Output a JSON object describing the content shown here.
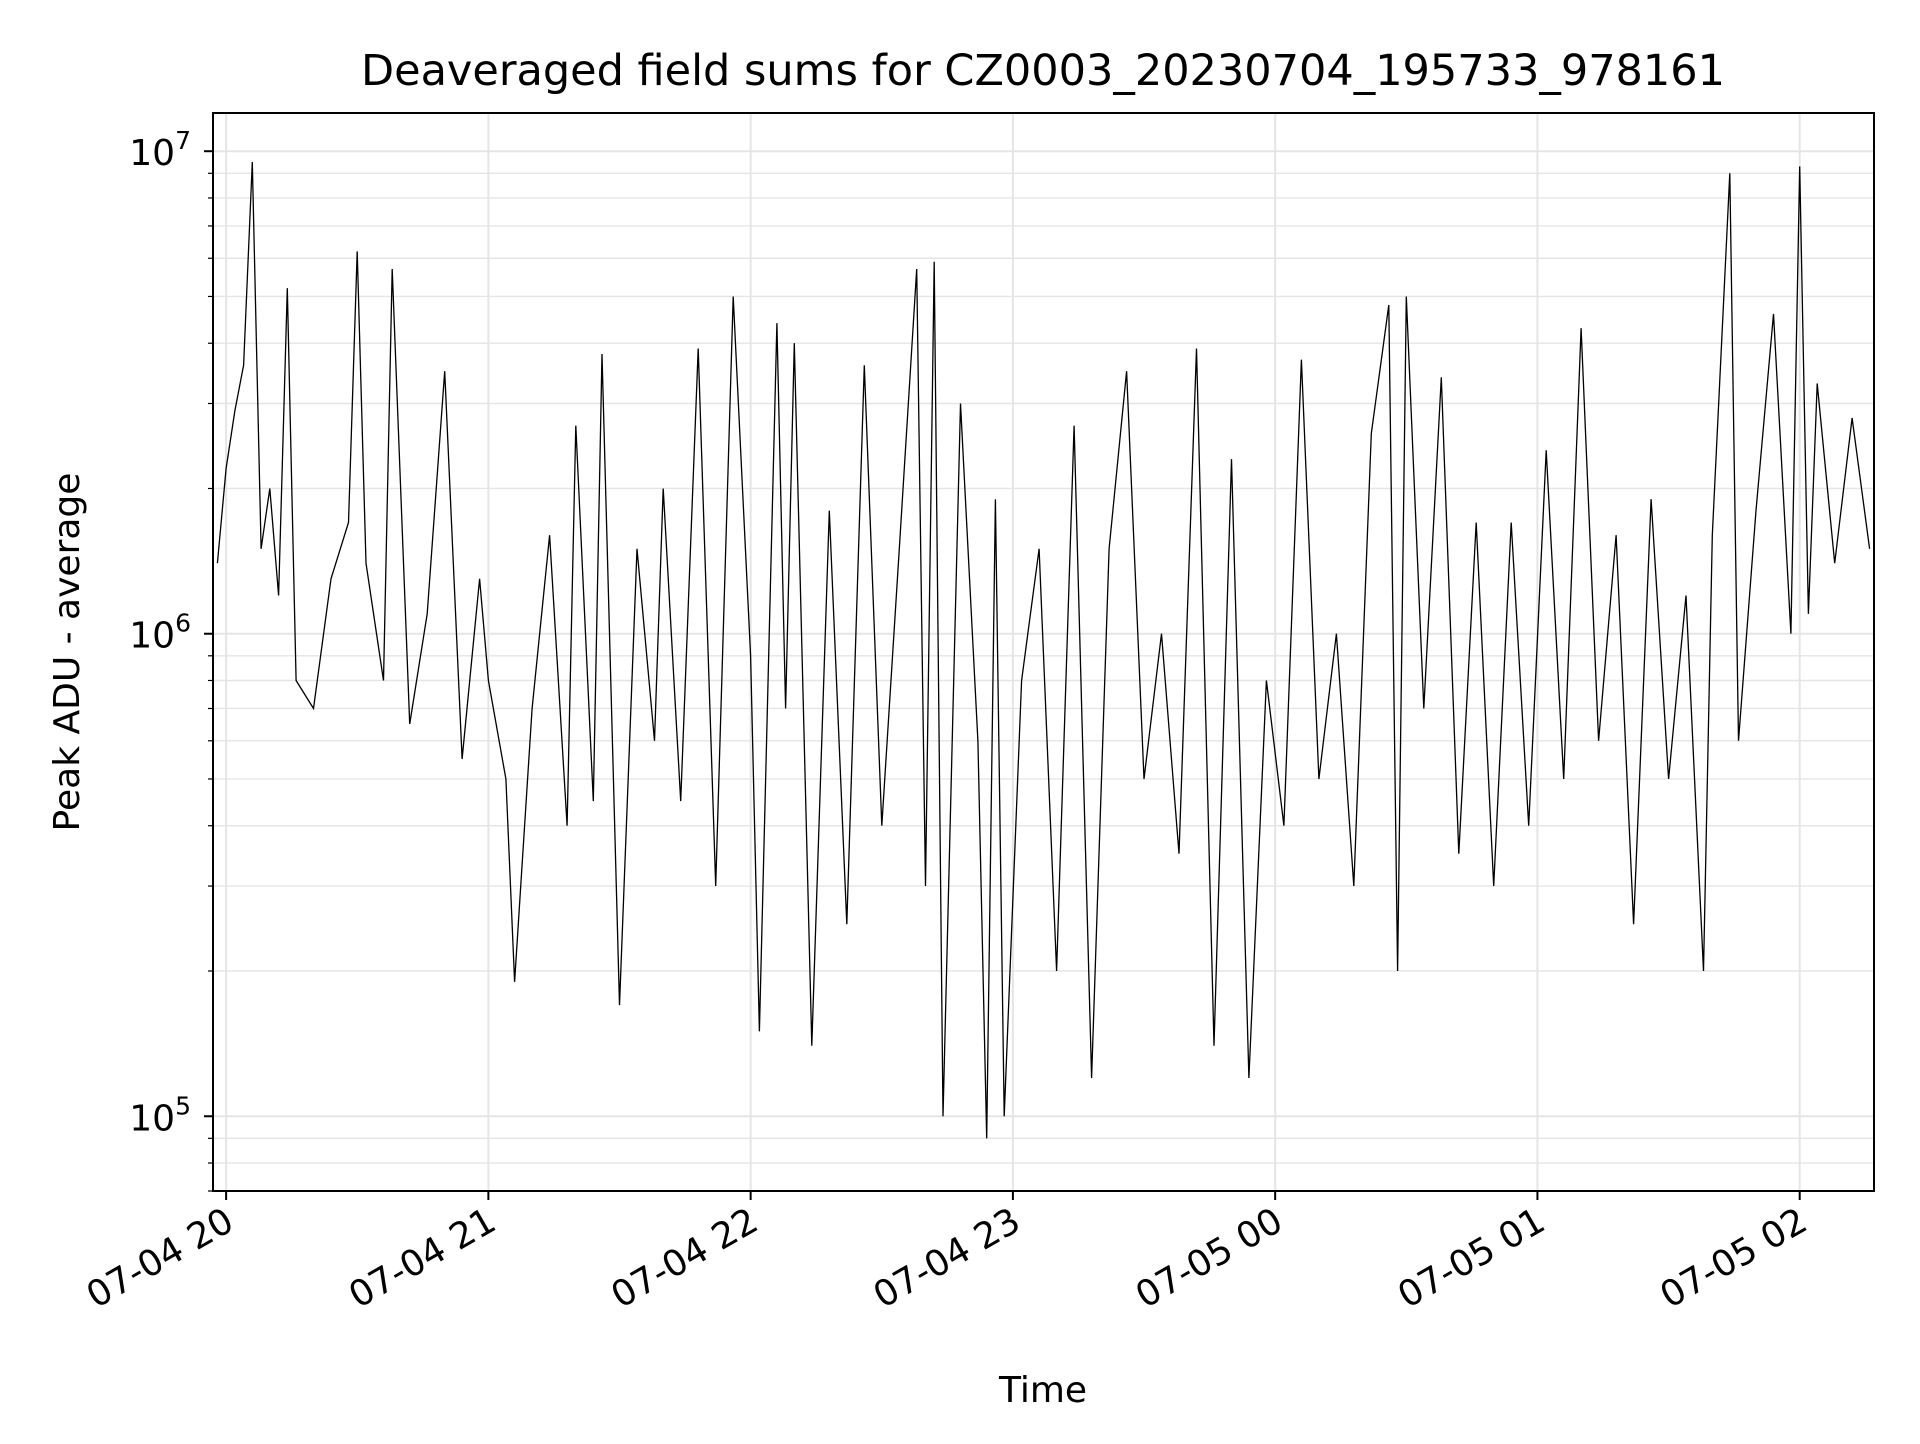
{
  "chart_data": {
    "type": "line",
    "title": "Deaveraged field sums for CZ0003_20230704_195733_978161",
    "xlabel": "Time",
    "ylabel": "Peak ADU - average",
    "xlim": [
      "2023-07-04 19:57",
      "2023-07-05 02:17"
    ],
    "ylim": [
      70000,
      12000000
    ],
    "yscale": "log",
    "grid": true,
    "line_color": "#000000",
    "grid_color": "#e5e5e5",
    "xticks": [
      {
        "t": "2023-07-04 20:00",
        "label": "07-04 20"
      },
      {
        "t": "2023-07-04 21:00",
        "label": "07-04 21"
      },
      {
        "t": "2023-07-04 22:00",
        "label": "07-04 22"
      },
      {
        "t": "2023-07-04 23:00",
        "label": "07-04 23"
      },
      {
        "t": "2023-07-05 00:00",
        "label": "07-05 00"
      },
      {
        "t": "2023-07-05 01:00",
        "label": "07-05 01"
      },
      {
        "t": "2023-07-05 02:00",
        "label": "07-05 02"
      }
    ],
    "yticks": [
      {
        "v": 100000,
        "base": "10",
        "exp": "5"
      },
      {
        "v": 1000000,
        "base": "10",
        "exp": "6"
      },
      {
        "v": 10000000,
        "base": "10",
        "exp": "7"
      }
    ],
    "series": [
      {
        "points": [
          [
            "2023-07-04 19:58",
            1400000
          ],
          [
            "2023-07-04 20:00",
            2200000
          ],
          [
            "2023-07-04 20:02",
            2900000
          ],
          [
            "2023-07-04 20:04",
            3600000
          ],
          [
            "2023-07-04 20:06",
            9500000
          ],
          [
            "2023-07-04 20:08",
            1500000
          ],
          [
            "2023-07-04 20:10",
            2000000
          ],
          [
            "2023-07-04 20:12",
            1200000
          ],
          [
            "2023-07-04 20:14",
            5200000
          ],
          [
            "2023-07-04 20:16",
            800000
          ],
          [
            "2023-07-04 20:20",
            700000
          ],
          [
            "2023-07-04 20:24",
            1300000
          ],
          [
            "2023-07-04 20:28",
            1700000
          ],
          [
            "2023-07-04 20:30",
            6200000
          ],
          [
            "2023-07-04 20:32",
            1400000
          ],
          [
            "2023-07-04 20:36",
            800000
          ],
          [
            "2023-07-04 20:38",
            5700000
          ],
          [
            "2023-07-04 20:42",
            650000
          ],
          [
            "2023-07-04 20:46",
            1100000
          ],
          [
            "2023-07-04 20:50",
            3500000
          ],
          [
            "2023-07-04 20:54",
            550000
          ],
          [
            "2023-07-04 20:58",
            1300000
          ],
          [
            "2023-07-04 21:00",
            800000
          ],
          [
            "2023-07-04 21:04",
            500000
          ],
          [
            "2023-07-04 21:06",
            190000
          ],
          [
            "2023-07-04 21:10",
            700000
          ],
          [
            "2023-07-04 21:14",
            1600000
          ],
          [
            "2023-07-04 21:18",
            400000
          ],
          [
            "2023-07-04 21:20",
            2700000
          ],
          [
            "2023-07-04 21:24",
            450000
          ],
          [
            "2023-07-04 21:26",
            3800000
          ],
          [
            "2023-07-04 21:30",
            170000
          ],
          [
            "2023-07-04 21:34",
            1500000
          ],
          [
            "2023-07-04 21:38",
            600000
          ],
          [
            "2023-07-04 21:40",
            2000000
          ],
          [
            "2023-07-04 21:44",
            450000
          ],
          [
            "2023-07-04 21:48",
            3900000
          ],
          [
            "2023-07-04 21:52",
            300000
          ],
          [
            "2023-07-04 21:56",
            5000000
          ],
          [
            "2023-07-04 22:00",
            900000
          ],
          [
            "2023-07-04 22:02",
            150000
          ],
          [
            "2023-07-04 22:06",
            4400000
          ],
          [
            "2023-07-04 22:08",
            700000
          ],
          [
            "2023-07-04 22:10",
            4000000
          ],
          [
            "2023-07-04 22:14",
            140000
          ],
          [
            "2023-07-04 22:18",
            1800000
          ],
          [
            "2023-07-04 22:22",
            250000
          ],
          [
            "2023-07-04 22:26",
            3600000
          ],
          [
            "2023-07-04 22:30",
            400000
          ],
          [
            "2023-07-04 22:34",
            1500000
          ],
          [
            "2023-07-04 22:38",
            5700000
          ],
          [
            "2023-07-04 22:40",
            300000
          ],
          [
            "2023-07-04 22:42",
            5900000
          ],
          [
            "2023-07-04 22:44",
            100000
          ],
          [
            "2023-07-04 22:48",
            3000000
          ],
          [
            "2023-07-04 22:52",
            600000
          ],
          [
            "2023-07-04 22:54",
            90000
          ],
          [
            "2023-07-04 22:56",
            1900000
          ],
          [
            "2023-07-04 22:58",
            100000
          ],
          [
            "2023-07-04 23:02",
            800000
          ],
          [
            "2023-07-04 23:06",
            1500000
          ],
          [
            "2023-07-04 23:10",
            200000
          ],
          [
            "2023-07-04 23:14",
            2700000
          ],
          [
            "2023-07-04 23:18",
            120000
          ],
          [
            "2023-07-04 23:22",
            1500000
          ],
          [
            "2023-07-04 23:26",
            3500000
          ],
          [
            "2023-07-04 23:30",
            500000
          ],
          [
            "2023-07-04 23:34",
            1000000
          ],
          [
            "2023-07-04 23:38",
            350000
          ],
          [
            "2023-07-04 23:42",
            3900000
          ],
          [
            "2023-07-04 23:46",
            140000
          ],
          [
            "2023-07-04 23:50",
            2300000
          ],
          [
            "2023-07-04 23:54",
            120000
          ],
          [
            "2023-07-04 23:58",
            800000
          ],
          [
            "2023-07-05 00:02",
            400000
          ],
          [
            "2023-07-05 00:06",
            3700000
          ],
          [
            "2023-07-05 00:10",
            500000
          ],
          [
            "2023-07-05 00:14",
            1000000
          ],
          [
            "2023-07-05 00:18",
            300000
          ],
          [
            "2023-07-05 00:22",
            2600000
          ],
          [
            "2023-07-05 00:26",
            4800000
          ],
          [
            "2023-07-05 00:28",
            200000
          ],
          [
            "2023-07-05 00:30",
            5000000
          ],
          [
            "2023-07-05 00:34",
            700000
          ],
          [
            "2023-07-05 00:38",
            3400000
          ],
          [
            "2023-07-05 00:42",
            350000
          ],
          [
            "2023-07-05 00:46",
            1700000
          ],
          [
            "2023-07-05 00:50",
            300000
          ],
          [
            "2023-07-05 00:54",
            1700000
          ],
          [
            "2023-07-05 00:58",
            400000
          ],
          [
            "2023-07-05 01:02",
            2400000
          ],
          [
            "2023-07-05 01:06",
            500000
          ],
          [
            "2023-07-05 01:10",
            4300000
          ],
          [
            "2023-07-05 01:14",
            600000
          ],
          [
            "2023-07-05 01:18",
            1600000
          ],
          [
            "2023-07-05 01:22",
            250000
          ],
          [
            "2023-07-05 01:26",
            1900000
          ],
          [
            "2023-07-05 01:30",
            500000
          ],
          [
            "2023-07-05 01:34",
            1200000
          ],
          [
            "2023-07-05 01:38",
            200000
          ],
          [
            "2023-07-05 01:40",
            1600000
          ],
          [
            "2023-07-05 01:44",
            9000000
          ],
          [
            "2023-07-05 01:46",
            600000
          ],
          [
            "2023-07-05 01:50",
            1800000
          ],
          [
            "2023-07-05 01:54",
            4600000
          ],
          [
            "2023-07-05 01:58",
            1000000
          ],
          [
            "2023-07-05 02:00",
            9300000
          ],
          [
            "2023-07-05 02:02",
            1100000
          ],
          [
            "2023-07-05 02:04",
            3300000
          ],
          [
            "2023-07-05 02:08",
            1400000
          ],
          [
            "2023-07-05 02:12",
            2800000
          ],
          [
            "2023-07-05 02:16",
            1500000
          ]
        ]
      }
    ]
  }
}
